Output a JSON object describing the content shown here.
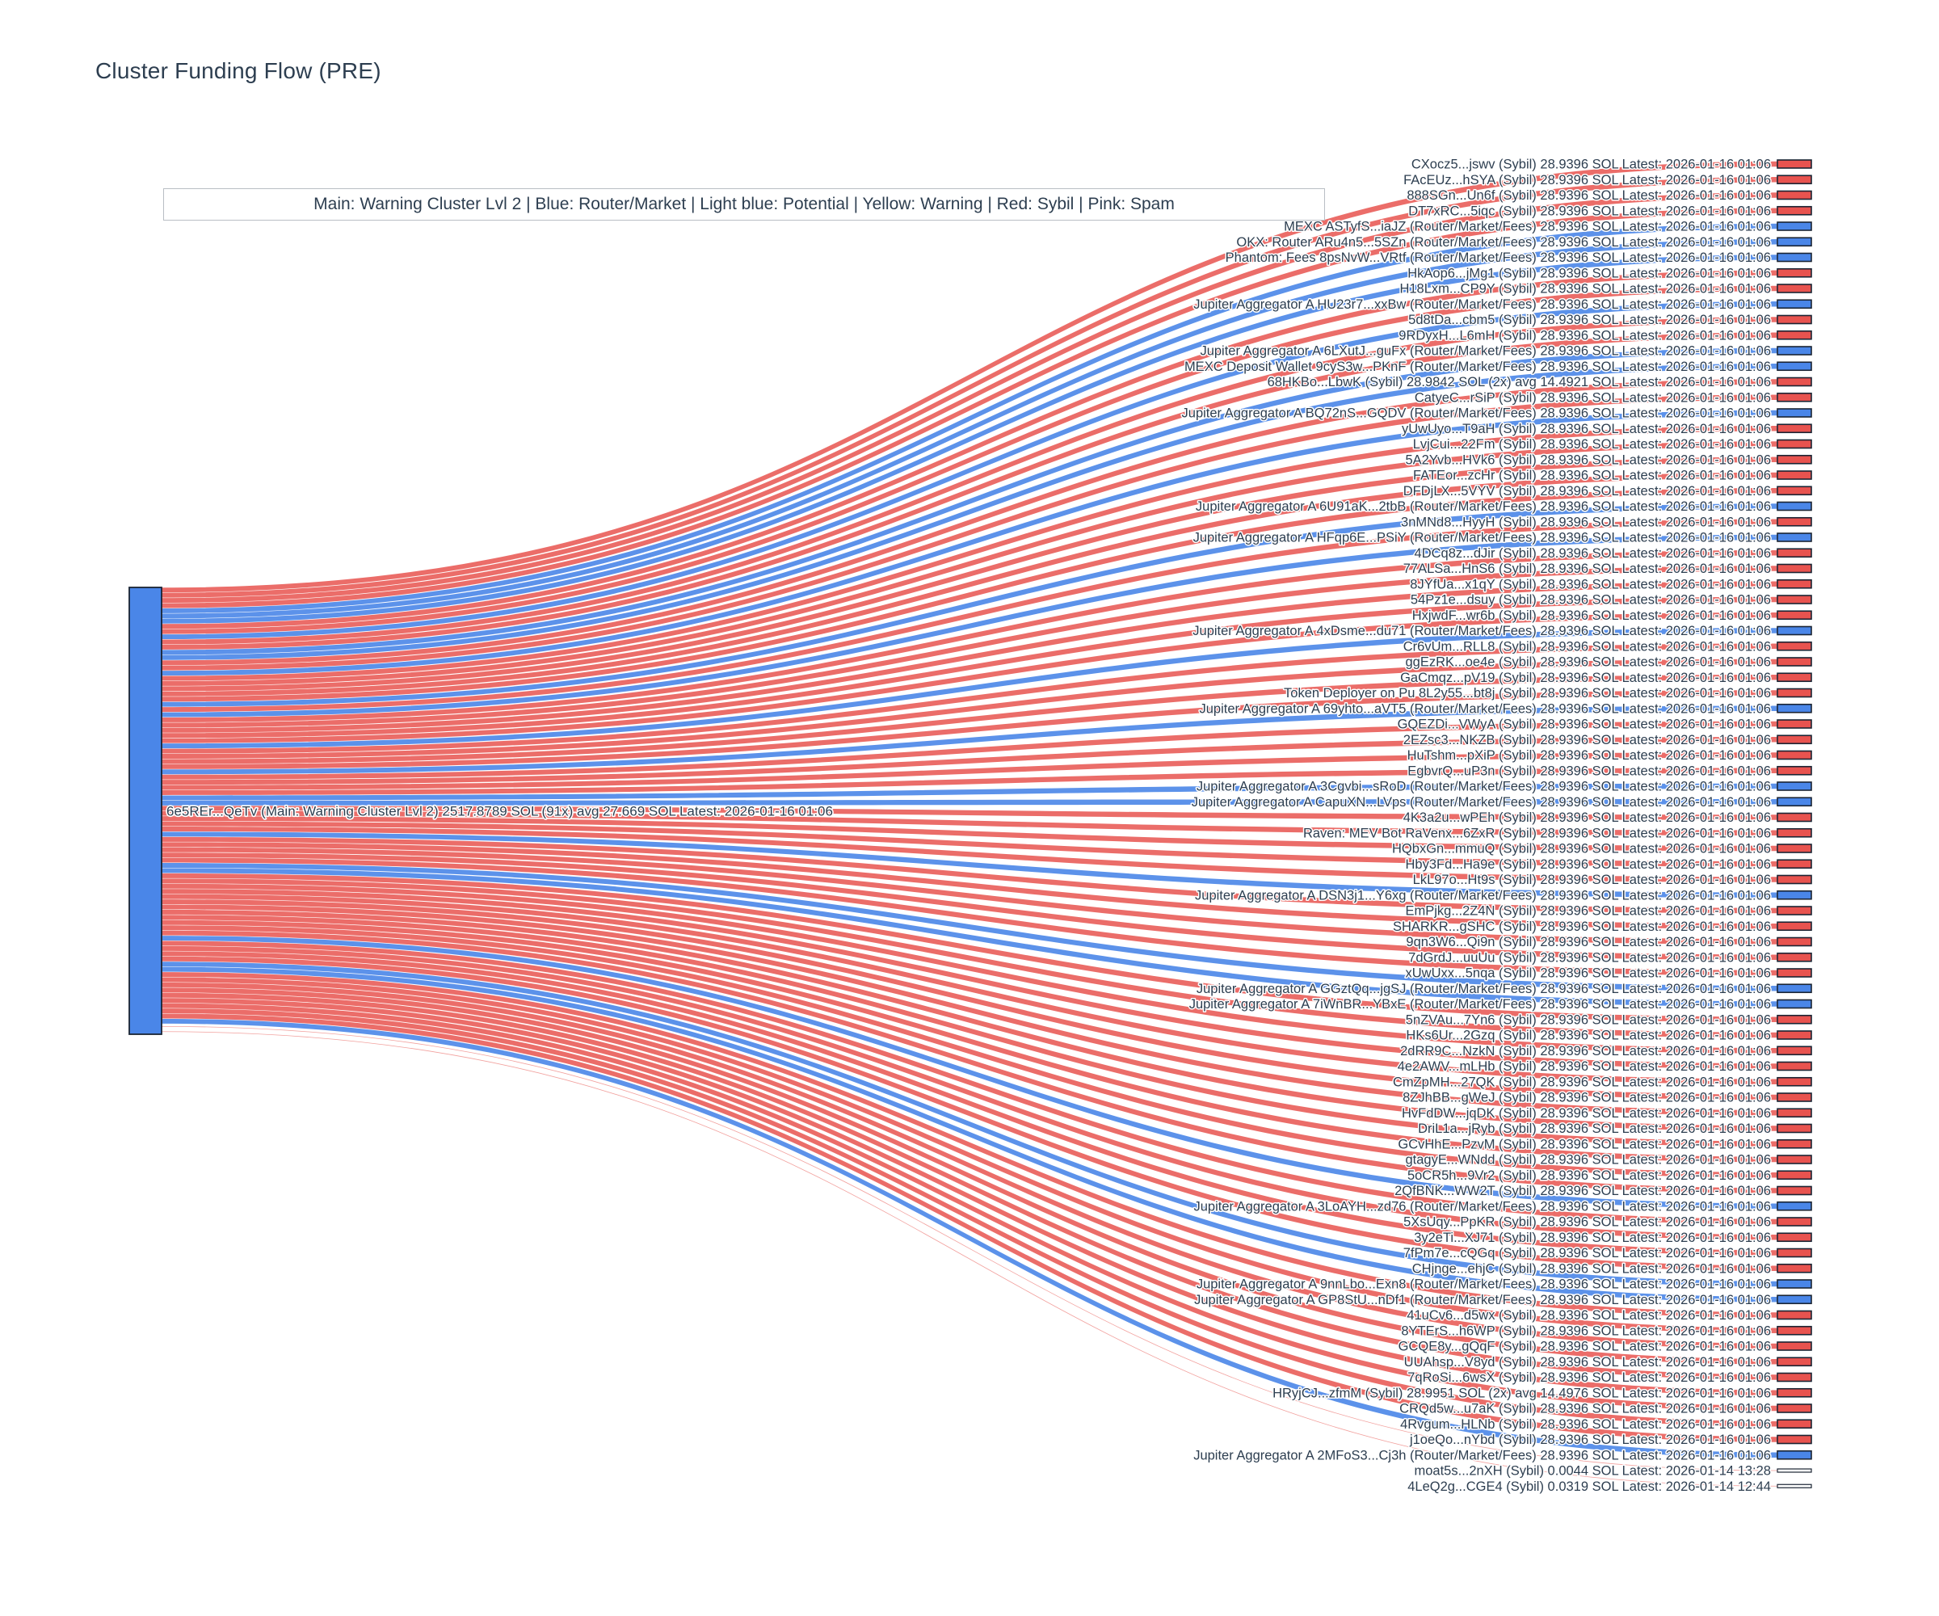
{
  "title": "Cluster Funding Flow (PRE)",
  "legend_note": "Main: Warning Cluster Lvl 2  |  Blue: Router/Market | Light blue: Potential | Yellow: Warning | Red: Sybil | Pink: Spam",
  "colors": {
    "sybil": "#e8534f",
    "router": "#4a86e8",
    "tiny": "#ffffff",
    "main_node": "#4a86e8",
    "text": "#2d3e50",
    "node_border": "#1a2433"
  },
  "chart_data": {
    "type": "sankey",
    "title": "Cluster Funding Flow (PRE)",
    "units": "SOL",
    "source": {
      "label": "6e5REr...QeTv (Main: Warning Cluster Lvl 2) 2517.8789 SOL (91x) avg 27.669 SOL Latest: 2026-01-16 01:06",
      "total_sol": 2517.8789,
      "tx_count": "91x",
      "avg_sol": 27.669,
      "latest": "2026-01-16 01:06"
    },
    "default_link_sol": 28.9396,
    "targets": [
      {
        "label": "CXocz5...jswv (Sybil) 28.9396 SOL Latest: 2026-01-16 01:06",
        "cat": "sybil"
      },
      {
        "label": "FAcEUz...hSYA (Sybil) 28.9396 SOL Latest: 2026-01-16 01:06",
        "cat": "sybil"
      },
      {
        "label": "888SGn...Un6f (Sybil) 28.9396 SOL Latest: 2026-01-16 01:06",
        "cat": "sybil"
      },
      {
        "label": "DT7xRC...5iqc (Sybil) 28.9396 SOL Latest: 2026-01-16 01:06",
        "cat": "sybil"
      },
      {
        "label": "MEXC ASTyfS...iaJZ (Router/Market/Fees) 28.9396 SOL Latest: 2026-01-16 01:06",
        "cat": "router"
      },
      {
        "label": "OKX: Router ARu4n5...5SZn (Router/Market/Fees) 28.9396 SOL Latest: 2026-01-16 01:06",
        "cat": "router"
      },
      {
        "label": "Phantom: Fees 8psNvW...VRtf (Router/Market/Fees) 28.9396 SOL Latest: 2026-01-16 01:06",
        "cat": "router"
      },
      {
        "label": "HkAop6...jMg1 (Sybil) 28.9396 SOL Latest: 2026-01-16 01:06",
        "cat": "sybil"
      },
      {
        "label": "H18Lxm...CP9Y (Sybil) 28.9396 SOL Latest: 2026-01-16 01:06",
        "cat": "sybil"
      },
      {
        "label": "Jupiter Aggregator A HU23r7...xxBw (Router/Market/Fees) 28.9396 SOL Latest: 2026-01-16 01:06",
        "cat": "router"
      },
      {
        "label": "5d8tDa...cbm5 (Sybil) 28.9396 SOL Latest: 2026-01-16 01:06",
        "cat": "sybil"
      },
      {
        "label": "9RDyxH...L6mH (Sybil) 28.9396 SOL Latest: 2026-01-16 01:06",
        "cat": "sybil"
      },
      {
        "label": "Jupiter Aggregator A 6LXutJ...guFx (Router/Market/Fees) 28.9396 SOL Latest: 2026-01-16 01:06",
        "cat": "router"
      },
      {
        "label": "MEXC Deposit Wallet 9cyS3w...PKnF (Router/Market/Fees) 28.9396 SOL Latest: 2026-01-16 01:06",
        "cat": "router"
      },
      {
        "label": "68HKBo...LbwK (Sybil) 28.9842 SOL (2x) avg 14.4921 SOL Latest: 2026-01-16 01:06",
        "cat": "sybil"
      },
      {
        "label": "CatyeC...rSiP (Sybil) 28.9396 SOL Latest: 2026-01-16 01:06",
        "cat": "sybil"
      },
      {
        "label": "Jupiter Aggregator A BQ72nS...GQDV (Router/Market/Fees) 28.9396 SOL Latest: 2026-01-16 01:06",
        "cat": "router"
      },
      {
        "label": "yUwUyo...T9aH (Sybil) 28.9396 SOL Latest: 2026-01-16 01:06",
        "cat": "sybil"
      },
      {
        "label": "LvjCui...22Fm (Sybil) 28.9396 SOL Latest: 2026-01-16 01:06",
        "cat": "sybil"
      },
      {
        "label": "5A2Yvb...HVk6 (Sybil) 28.9396 SOL Latest: 2026-01-16 01:06",
        "cat": "sybil"
      },
      {
        "label": "FATEor...zcHr (Sybil) 28.9396 SOL Latest: 2026-01-16 01:06",
        "cat": "sybil"
      },
      {
        "label": "DFDjLX...5VYV (Sybil) 28.9396 SOL Latest: 2026-01-16 01:06",
        "cat": "sybil"
      },
      {
        "label": "Jupiter Aggregator A 6U91aK...2tbB (Router/Market/Fees) 28.9396 SOL Latest: 2026-01-16 01:06",
        "cat": "router"
      },
      {
        "label": "3nMNd8...HyyH (Sybil) 28.9396 SOL Latest: 2026-01-16 01:06",
        "cat": "sybil"
      },
      {
        "label": "Jupiter Aggregator A HFqp6E...PSiY (Router/Market/Fees) 28.9396 SOL Latest: 2026-01-16 01:06",
        "cat": "router"
      },
      {
        "label": "4DCq8z...dJir (Sybil) 28.9396 SOL Latest: 2026-01-16 01:06",
        "cat": "sybil"
      },
      {
        "label": "77ALSa...HnS6 (Sybil) 28.9396 SOL Latest: 2026-01-16 01:06",
        "cat": "sybil"
      },
      {
        "label": "8JYfUa...x1qY (Sybil) 28.9396 SOL Latest: 2026-01-16 01:06",
        "cat": "sybil"
      },
      {
        "label": "54Pz1e...dsuy (Sybil) 28.9396 SOL Latest: 2026-01-16 01:06",
        "cat": "sybil"
      },
      {
        "label": "HxjwdF...wr6b (Sybil) 28.9396 SOL Latest: 2026-01-16 01:06",
        "cat": "sybil"
      },
      {
        "label": "Jupiter Aggregator A 4xDsme...du71 (Router/Market/Fees) 28.9396 SOL Latest: 2026-01-16 01:06",
        "cat": "router"
      },
      {
        "label": "Cr6vUm...RLL8 (Sybil) 28.9396 SOL Latest: 2026-01-16 01:06",
        "cat": "sybil"
      },
      {
        "label": "ggEzRK...oe4e (Sybil) 28.9396 SOL Latest: 2026-01-16 01:06",
        "cat": "sybil"
      },
      {
        "label": "GaCmqz...pV19 (Sybil) 28.9396 SOL Latest: 2026-01-16 01:06",
        "cat": "sybil"
      },
      {
        "label": "Token Deployer on Pu 8L2y55...bt8j (Sybil) 28.9396 SOL Latest: 2026-01-16 01:06",
        "cat": "sybil"
      },
      {
        "label": "Jupiter Aggregator A 69yhto...aVT5 (Router/Market/Fees) 28.9396 SOL Latest: 2026-01-16 01:06",
        "cat": "router"
      },
      {
        "label": "GQEZDi...VWyA (Sybil) 28.9396 SOL Latest: 2026-01-16 01:06",
        "cat": "sybil"
      },
      {
        "label": "2EZsc3...NKZB (Sybil) 28.9396 SOL Latest: 2026-01-16 01:06",
        "cat": "sybil"
      },
      {
        "label": "HuTshm...pXiP (Sybil) 28.9396 SOL Latest: 2026-01-16 01:06",
        "cat": "sybil"
      },
      {
        "label": "EgbvrQ...uP3n (Sybil) 28.9396 SOL Latest: 2026-01-16 01:06",
        "cat": "sybil"
      },
      {
        "label": "Jupiter Aggregator A 3Cgvbi...sRoD (Router/Market/Fees) 28.9396 SOL Latest: 2026-01-16 01:06",
        "cat": "router"
      },
      {
        "label": "Jupiter Aggregator A CapuXN...LVps (Router/Market/Fees) 28.9396 SOL Latest: 2026-01-16 01:06",
        "cat": "router"
      },
      {
        "label": "4K3a2u...wPEh (Sybil) 28.9396 SOL Latest: 2026-01-16 01:06",
        "cat": "sybil"
      },
      {
        "label": "Raven: MEV Bot RaVenx...6ZxR (Sybil) 28.9396 SOL Latest: 2026-01-16 01:06",
        "cat": "sybil"
      },
      {
        "label": "HQbxGn...mmuQ (Sybil) 28.9396 SOL Latest: 2026-01-16 01:06",
        "cat": "sybil"
      },
      {
        "label": "Hby3Fd...Ha9e (Sybil) 28.9396 SOL Latest: 2026-01-16 01:06",
        "cat": "sybil"
      },
      {
        "label": "LkL97o...Ht9s (Sybil) 28.9396 SOL Latest: 2026-01-16 01:06",
        "cat": "sybil"
      },
      {
        "label": "Jupiter Aggregator A DSN3j1...Y6xg (Router/Market/Fees) 28.9396 SOL Latest: 2026-01-16 01:06",
        "cat": "router"
      },
      {
        "label": "EmPjkg...2Z4N (Sybil) 28.9396 SOL Latest: 2026-01-16 01:06",
        "cat": "sybil"
      },
      {
        "label": "SHARKR...gSHC (Sybil) 28.9396 SOL Latest: 2026-01-16 01:06",
        "cat": "sybil"
      },
      {
        "label": "9qn3W6...Qi9n (Sybil) 28.9396 SOL Latest: 2026-01-16 01:06",
        "cat": "sybil"
      },
      {
        "label": "7dGrdJ...uuUu (Sybil) 28.9396 SOL Latest: 2026-01-16 01:06",
        "cat": "sybil"
      },
      {
        "label": "xUwUxx...5nqa (Sybil) 28.9396 SOL Latest: 2026-01-16 01:06",
        "cat": "sybil"
      },
      {
        "label": "Jupiter Aggregator A GGztQq...jgSJ (Router/Market/Fees) 28.9396 SOL Latest: 2026-01-16 01:06",
        "cat": "router"
      },
      {
        "label": "Jupiter Aggregator A 7iWnBR...YBxE (Router/Market/Fees) 28.9396 SOL Latest: 2026-01-16 01:06",
        "cat": "router"
      },
      {
        "label": "5nZVAu...7Yn6 (Sybil) 28.9396 SOL Latest: 2026-01-16 01:06",
        "cat": "sybil"
      },
      {
        "label": "HKs6Ur...2Gzq (Sybil) 28.9396 SOL Latest: 2026-01-16 01:06",
        "cat": "sybil"
      },
      {
        "label": "2dRR9C...NzkN (Sybil) 28.9396 SOL Latest: 2026-01-16 01:06",
        "cat": "sybil"
      },
      {
        "label": "4e2AWV...mLHb (Sybil) 28.9396 SOL Latest: 2026-01-16 01:06",
        "cat": "sybil"
      },
      {
        "label": "CmZpMH...27QK (Sybil) 28.9396 SOL Latest: 2026-01-16 01:06",
        "cat": "sybil"
      },
      {
        "label": "8ZJhBB...gWeJ (Sybil) 28.9396 SOL Latest: 2026-01-16 01:06",
        "cat": "sybil"
      },
      {
        "label": "HvFdDW...jqDK (Sybil) 28.9396 SOL Latest: 2026-01-16 01:06",
        "cat": "sybil"
      },
      {
        "label": "DriL1a...jRyb (Sybil) 28.9396 SOL Latest: 2026-01-16 01:06",
        "cat": "sybil"
      },
      {
        "label": "GCvHhE...PzvM (Sybil) 28.9396 SOL Latest: 2026-01-16 01:06",
        "cat": "sybil"
      },
      {
        "label": "gtagyE...WNdd (Sybil) 28.9396 SOL Latest: 2026-01-16 01:06",
        "cat": "sybil"
      },
      {
        "label": "5oCR5h...9Vr2 (Sybil) 28.9396 SOL Latest: 2026-01-16 01:06",
        "cat": "sybil"
      },
      {
        "label": "2QfBNK...WW2T (Sybil) 28.9396 SOL Latest: 2026-01-16 01:06",
        "cat": "sybil"
      },
      {
        "label": "Jupiter Aggregator A 3LoAYH...zd76 (Router/Market/Fees) 28.9396 SOL Latest: 2026-01-16 01:06",
        "cat": "router"
      },
      {
        "label": "5XsUqy...PpKR (Sybil) 28.9396 SOL Latest: 2026-01-16 01:06",
        "cat": "sybil"
      },
      {
        "label": "3y2eTi...XJ71 (Sybil) 28.9396 SOL Latest: 2026-01-16 01:06",
        "cat": "sybil"
      },
      {
        "label": "7fPm7e...cQGq (Sybil) 28.9396 SOL Latest: 2026-01-16 01:06",
        "cat": "sybil"
      },
      {
        "label": "CHjnge...ehjC (Sybil) 28.9396 SOL Latest: 2026-01-16 01:06",
        "cat": "sybil"
      },
      {
        "label": "Jupiter Aggregator A 9nnLbo...Exn8 (Router/Market/Fees) 28.9396 SOL Latest: 2026-01-16 01:06",
        "cat": "router"
      },
      {
        "label": "Jupiter Aggregator A GP8StU...nDf1 (Router/Market/Fees) 28.9396 SOL Latest: 2026-01-16 01:06",
        "cat": "router"
      },
      {
        "label": "41uCv6...d5wx (Sybil) 28.9396 SOL Latest: 2026-01-16 01:06",
        "cat": "sybil"
      },
      {
        "label": "8YTErS...h6WP (Sybil) 28.9396 SOL Latest: 2026-01-16 01:06",
        "cat": "sybil"
      },
      {
        "label": "GCQE8y...gQqF (Sybil) 28.9396 SOL Latest: 2026-01-16 01:06",
        "cat": "sybil"
      },
      {
        "label": "UUAhsp...V8yd (Sybil) 28.9396 SOL Latest: 2026-01-16 01:06",
        "cat": "sybil"
      },
      {
        "label": "7qRoSi...6wsX (Sybil) 28.9396 SOL Latest: 2026-01-16 01:06",
        "cat": "sybil"
      },
      {
        "label": "HRyjCJ...zfmM (Sybil) 28.9951 SOL (2x) avg 14.4976 SOL Latest: 2026-01-16 01:06",
        "cat": "sybil"
      },
      {
        "label": "CRQd5w...u7aK (Sybil) 28.9396 SOL Latest: 2026-01-16 01:06",
        "cat": "sybil"
      },
      {
        "label": "4Rvgum...HLNb (Sybil) 28.9396 SOL Latest: 2026-01-16 01:06",
        "cat": "sybil"
      },
      {
        "label": "j1oeQo...nYbd (Sybil) 28.9396 SOL Latest: 2026-01-16 01:06",
        "cat": "sybil"
      },
      {
        "label": "Jupiter Aggregator A 2MFoS3...Cj3h (Router/Market/Fees) 28.9396 SOL Latest: 2026-01-16 01:06",
        "cat": "router"
      },
      {
        "label": "moat5s...2nXH (Sybil) 0.0044 SOL Latest: 2026-01-14 13:28",
        "cat": "tiny"
      },
      {
        "label": "4LeQ2g...CGE4 (Sybil) 0.0319 SOL Latest: 2026-01-14 12:44",
        "cat": "tiny"
      }
    ]
  }
}
